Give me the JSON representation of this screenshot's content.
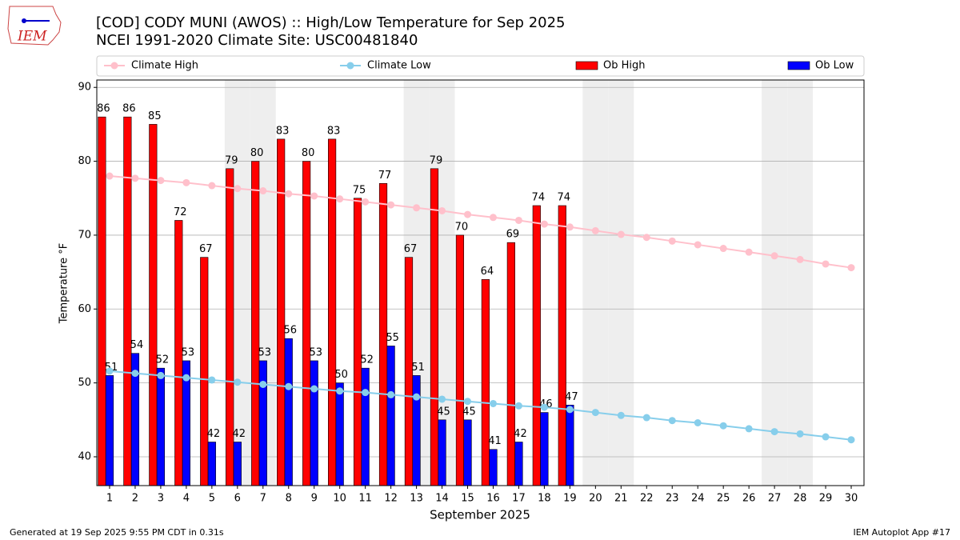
{
  "logo_text": "IEM",
  "footer_left": "Generated at 19 Sep 2025 9:55 PM CDT in 0.31s",
  "footer_right": "IEM Autoplot App #17",
  "chart_data": {
    "type": "bar",
    "title": "[COD] CODY MUNI (AWOS) :: High/Low Temperature for Sep 2025",
    "subtitle": "NCEI 1991-2020 Climate Site: USC00481840",
    "xlabel": "September 2025",
    "ylabel": "Temperature °F",
    "x": [
      1,
      2,
      3,
      4,
      5,
      6,
      7,
      8,
      9,
      10,
      11,
      12,
      13,
      14,
      15,
      16,
      17,
      18,
      19,
      20,
      21,
      22,
      23,
      24,
      25,
      26,
      27,
      28,
      29,
      30
    ],
    "xlim": [
      0.5,
      30.5
    ],
    "xticks": [
      1,
      2,
      3,
      4,
      5,
      6,
      7,
      8,
      9,
      10,
      11,
      12,
      13,
      14,
      15,
      16,
      17,
      18,
      19,
      20,
      21,
      22,
      23,
      24,
      25,
      26,
      27,
      28,
      29,
      30
    ],
    "ylim": [
      36.1,
      91.0
    ],
    "yticks": [
      40,
      50,
      60,
      70,
      80,
      90
    ],
    "grid": true,
    "shaded_days": [
      6,
      7,
      13,
      14,
      20,
      21,
      27,
      28
    ],
    "shade_color": "#eeeeee",
    "series": [
      {
        "name": "Climate High",
        "kind": "line",
        "color": "#ffc0cb",
        "values": [
          78.0,
          77.7,
          77.4,
          77.1,
          76.7,
          76.3,
          76.0,
          75.6,
          75.3,
          74.9,
          74.5,
          74.1,
          73.7,
          73.3,
          72.8,
          72.4,
          72.0,
          71.5,
          71.1,
          70.6,
          70.1,
          69.7,
          69.2,
          68.7,
          68.2,
          67.7,
          67.2,
          66.7,
          66.1,
          65.6
        ]
      },
      {
        "name": "Climate Low",
        "kind": "line",
        "color": "#87ceeb",
        "values": [
          51.6,
          51.3,
          51.0,
          50.7,
          50.4,
          50.1,
          49.8,
          49.5,
          49.2,
          48.9,
          48.7,
          48.4,
          48.1,
          47.8,
          47.5,
          47.2,
          46.9,
          46.7,
          46.4,
          46.0,
          45.6,
          45.3,
          44.9,
          44.6,
          44.2,
          43.8,
          43.4,
          43.1,
          42.7,
          42.3
        ]
      },
      {
        "name": "Ob High",
        "kind": "bar",
        "color": "#ff0000",
        "values": [
          86,
          86,
          85,
          72,
          67,
          79,
          80,
          83,
          80,
          83,
          75,
          77,
          67,
          79,
          70,
          64,
          69,
          74,
          74,
          null,
          null,
          null,
          null,
          null,
          null,
          null,
          null,
          null,
          null,
          null
        ]
      },
      {
        "name": "Ob Low",
        "kind": "bar",
        "color": "#0000ff",
        "values": [
          51,
          54,
          52,
          53,
          42,
          42,
          53,
          56,
          53,
          50,
          52,
          55,
          51,
          45,
          45,
          41,
          42,
          46,
          47,
          null,
          null,
          null,
          null,
          null,
          null,
          null,
          null,
          null,
          null,
          null
        ]
      }
    ]
  }
}
